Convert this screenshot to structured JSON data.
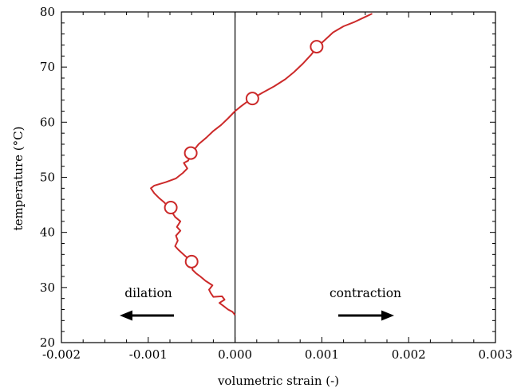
{
  "chart_data": {
    "type": "line",
    "xlabel": "volumetric strain (-)",
    "ylabel": "temperature (°C)",
    "xlim": [
      -0.002,
      0.003
    ],
    "ylim": [
      20,
      80
    ],
    "x_ticks": [
      "-0.002",
      "-0.001",
      "0.000",
      "0.001",
      "0.002",
      "0.003"
    ],
    "y_ticks": [
      "20",
      "30",
      "40",
      "50",
      "60",
      "70",
      "80"
    ],
    "grid": false,
    "colors": {
      "series": "#cc2a2a",
      "zero_line": "#000000",
      "axes": "#000000"
    },
    "series": [
      {
        "points": [
          [
            0.0,
            25.0
          ],
          [
            -3e-05,
            25.6
          ],
          [
            -8e-05,
            26.0
          ],
          [
            -0.00013,
            26.6
          ],
          [
            -0.00018,
            27.2
          ],
          [
            -0.00012,
            27.8
          ],
          [
            -0.00015,
            28.4
          ],
          [
            -0.00025,
            28.3
          ],
          [
            -0.00028,
            29.0
          ],
          [
            -0.0003,
            29.6
          ],
          [
            -0.00026,
            30.4
          ],
          [
            -0.00034,
            31.2
          ],
          [
            -0.0004,
            32.0
          ],
          [
            -0.00045,
            32.6
          ],
          [
            -0.00049,
            33.2
          ],
          [
            -0.0005,
            34.7
          ],
          [
            -0.00058,
            35.8
          ],
          [
            -0.00065,
            36.8
          ],
          [
            -0.00069,
            37.5
          ],
          [
            -0.00066,
            38.5
          ],
          [
            -0.00068,
            39.4
          ],
          [
            -0.00063,
            40.3
          ],
          [
            -0.00067,
            41.0
          ],
          [
            -0.00063,
            42.0
          ],
          [
            -0.00069,
            42.8
          ],
          [
            -0.00076,
            44.5
          ],
          [
            -0.00082,
            45.5
          ],
          [
            -0.00088,
            46.3
          ],
          [
            -0.00093,
            47.1
          ],
          [
            -0.00097,
            48.0
          ],
          [
            -0.00093,
            48.5
          ],
          [
            -0.0008,
            49.1
          ],
          [
            -0.00068,
            49.8
          ],
          [
            -0.0006,
            50.8
          ],
          [
            -0.00055,
            51.6
          ],
          [
            -0.00059,
            52.6
          ],
          [
            -0.00054,
            53.0
          ],
          [
            -0.0005,
            54.4
          ],
          [
            -0.00042,
            56.0
          ],
          [
            -0.00033,
            57.2
          ],
          [
            -0.00025,
            58.4
          ],
          [
            -0.00016,
            59.5
          ],
          [
            -8e-05,
            60.7
          ],
          [
            0.0,
            62.0
          ],
          [
            7e-05,
            62.9
          ],
          [
            0.00014,
            63.7
          ],
          [
            0.0002,
            64.3
          ],
          [
            0.00031,
            65.3
          ],
          [
            0.00045,
            66.5
          ],
          [
            0.00058,
            67.8
          ],
          [
            0.00068,
            69.1
          ],
          [
            0.00078,
            70.6
          ],
          [
            0.00088,
            72.3
          ],
          [
            0.00095,
            73.7
          ],
          [
            0.00104,
            75.0
          ],
          [
            0.00113,
            76.3
          ],
          [
            0.00125,
            77.4
          ],
          [
            0.00138,
            78.2
          ],
          [
            0.0015,
            79.1
          ],
          [
            0.00158,
            79.7
          ]
        ],
        "markers": [
          [
            -0.0005,
            34.7
          ],
          [
            -0.00074,
            44.5
          ],
          [
            -0.00051,
            54.4
          ],
          [
            0.0002,
            64.3
          ],
          [
            0.00094,
            73.7
          ]
        ]
      }
    ],
    "annotations": [
      {
        "text": "dilation",
        "arrow": "left"
      },
      {
        "text": "contraction",
        "arrow": "right"
      }
    ]
  }
}
